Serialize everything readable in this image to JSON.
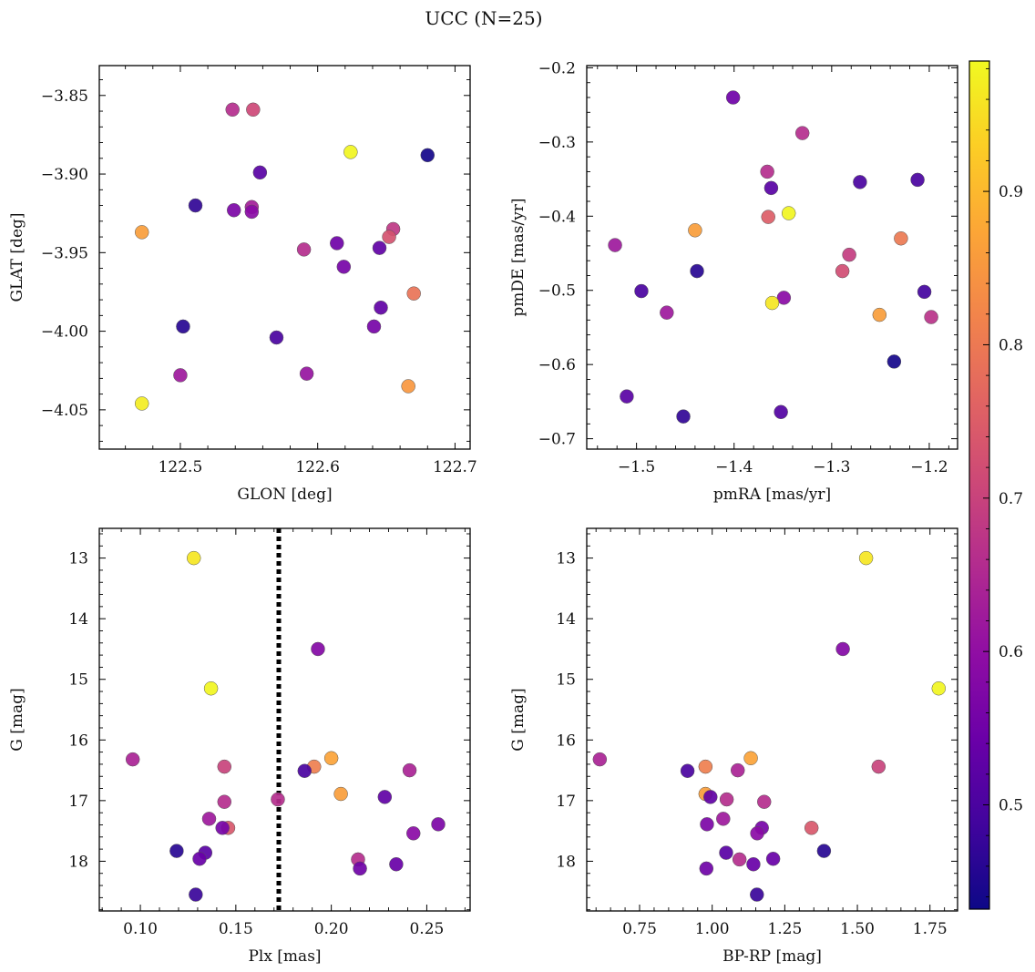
{
  "title": "UCC (N=25)",
  "colorbar": {
    "ticks": [
      0.5,
      0.6,
      0.7,
      0.8,
      0.9
    ],
    "range": [
      0.432,
      0.985
    ],
    "colormap": "plasma"
  },
  "chart_data": [
    {
      "type": "scatter",
      "xlabel": "GLON [deg]",
      "ylabel": "GLAT [deg]",
      "xlim": [
        122.441,
        122.711
      ],
      "ylim": [
        -4.075,
        -3.831
      ],
      "y_inverted": false,
      "xticks": [
        122.5,
        122.6,
        122.7
      ],
      "xtick_labels": [
        "122.5",
        "122.6",
        "122.7"
      ],
      "yticks": [
        -3.85,
        -3.9,
        -3.95,
        -4.0,
        -4.05
      ],
      "ytick_labels": [
        "−3.85",
        "−3.90",
        "−3.95",
        "−4.00",
        "−4.05"
      ],
      "points": [
        {
          "x": 122.538,
          "y": -3.859,
          "c": 0.66
        },
        {
          "x": 122.553,
          "y": -3.859,
          "c": 0.71
        },
        {
          "x": 122.624,
          "y": -3.886,
          "c": 0.98
        },
        {
          "x": 122.68,
          "y": -3.888,
          "c": 0.44
        },
        {
          "x": 122.558,
          "y": -3.899,
          "c": 0.52
        },
        {
          "x": 122.511,
          "y": -3.92,
          "c": 0.47
        },
        {
          "x": 122.539,
          "y": -3.923,
          "c": 0.57
        },
        {
          "x": 122.552,
          "y": -3.921,
          "c": 0.63
        },
        {
          "x": 122.552,
          "y": -3.924,
          "c": 0.59
        },
        {
          "x": 122.472,
          "y": -3.937,
          "c": 0.86
        },
        {
          "x": 122.655,
          "y": -3.935,
          "c": 0.68
        },
        {
          "x": 122.652,
          "y": -3.94,
          "c": 0.73
        },
        {
          "x": 122.614,
          "y": -3.944,
          "c": 0.55
        },
        {
          "x": 122.59,
          "y": -3.948,
          "c": 0.66
        },
        {
          "x": 122.645,
          "y": -3.947,
          "c": 0.53
        },
        {
          "x": 122.619,
          "y": -3.959,
          "c": 0.56
        },
        {
          "x": 122.67,
          "y": -3.976,
          "c": 0.79
        },
        {
          "x": 122.502,
          "y": -3.997,
          "c": 0.46
        },
        {
          "x": 122.646,
          "y": -3.985,
          "c": 0.53
        },
        {
          "x": 122.641,
          "y": -3.997,
          "c": 0.56
        },
        {
          "x": 122.57,
          "y": -4.004,
          "c": 0.5
        },
        {
          "x": 122.5,
          "y": -4.028,
          "c": 0.62
        },
        {
          "x": 122.592,
          "y": -4.027,
          "c": 0.61
        },
        {
          "x": 122.666,
          "y": -4.035,
          "c": 0.85
        },
        {
          "x": 122.472,
          "y": -4.046,
          "c": 0.97
        }
      ]
    },
    {
      "type": "scatter",
      "xlabel": "pmRA [mas/yr]",
      "ylabel": "pmDE [mas/yr]",
      "xlim": [
        -1.551,
        -1.171
      ],
      "ylim": [
        -0.714,
        -0.197
      ],
      "y_inverted": false,
      "xticks": [
        -1.5,
        -1.4,
        -1.3,
        -1.2
      ],
      "xtick_labels": [
        "−1.5",
        "−1.4",
        "−1.3",
        "−1.2"
      ],
      "yticks": [
        -0.2,
        -0.3,
        -0.4,
        -0.5,
        -0.6,
        -0.7
      ],
      "ytick_labels": [
        "−0.2",
        "−0.3",
        "−0.4",
        "−0.5",
        "−0.6",
        "−0.7"
      ],
      "points": [
        {
          "x": -1.401,
          "y": -0.24,
          "c": 0.55
        },
        {
          "x": -1.33,
          "y": -0.288,
          "c": 0.66
        },
        {
          "x": -1.366,
          "y": -0.34,
          "c": 0.66
        },
        {
          "x": -1.362,
          "y": -0.362,
          "c": 0.52
        },
        {
          "x": -1.271,
          "y": -0.354,
          "c": 0.5
        },
        {
          "x": -1.212,
          "y": -0.351,
          "c": 0.5
        },
        {
          "x": -1.344,
          "y": -0.396,
          "c": 0.98
        },
        {
          "x": -1.365,
          "y": -0.401,
          "c": 0.75
        },
        {
          "x": -1.44,
          "y": -0.419,
          "c": 0.86
        },
        {
          "x": -1.522,
          "y": -0.439,
          "c": 0.62
        },
        {
          "x": -1.229,
          "y": -0.43,
          "c": 0.8
        },
        {
          "x": -1.282,
          "y": -0.452,
          "c": 0.69
        },
        {
          "x": -1.438,
          "y": -0.474,
          "c": 0.46
        },
        {
          "x": -1.289,
          "y": -0.474,
          "c": 0.72
        },
        {
          "x": -1.495,
          "y": -0.501,
          "c": 0.5
        },
        {
          "x": -1.205,
          "y": -0.502,
          "c": 0.49
        },
        {
          "x": -1.349,
          "y": -0.51,
          "c": 0.59
        },
        {
          "x": -1.361,
          "y": -0.517,
          "c": 0.96
        },
        {
          "x": -1.469,
          "y": -0.53,
          "c": 0.62
        },
        {
          "x": -1.251,
          "y": -0.533,
          "c": 0.86
        },
        {
          "x": -1.198,
          "y": -0.536,
          "c": 0.67
        },
        {
          "x": -1.236,
          "y": -0.596,
          "c": 0.44
        },
        {
          "x": -1.51,
          "y": -0.643,
          "c": 0.52
        },
        {
          "x": -1.352,
          "y": -0.664,
          "c": 0.51
        },
        {
          "x": -1.452,
          "y": -0.67,
          "c": 0.47
        }
      ]
    },
    {
      "type": "scatter",
      "xlabel": "Plx [mas]",
      "ylabel": "G [mag]",
      "xlim": [
        0.0785,
        0.2727
      ],
      "ylim": [
        18.82,
        12.51
      ],
      "y_inverted": true,
      "xticks": [
        0.1,
        0.15,
        0.2,
        0.25
      ],
      "xtick_labels": [
        "0.10",
        "0.15",
        "0.20",
        "0.25"
      ],
      "yticks": [
        13,
        14,
        15,
        16,
        17,
        18
      ],
      "ytick_labels": [
        "13",
        "14",
        "15",
        "16",
        "17",
        "18"
      ],
      "vline": {
        "x": 0.1725,
        "style": "dotted",
        "color": "#000000"
      },
      "points": [
        {
          "x": 0.128,
          "y": 13.0,
          "c": 0.96
        },
        {
          "x": 0.193,
          "y": 14.5,
          "c": 0.58
        },
        {
          "x": 0.137,
          "y": 15.15,
          "c": 0.98
        },
        {
          "x": 0.096,
          "y": 16.32,
          "c": 0.64
        },
        {
          "x": 0.2,
          "y": 16.3,
          "c": 0.87
        },
        {
          "x": 0.191,
          "y": 16.44,
          "c": 0.81
        },
        {
          "x": 0.144,
          "y": 16.44,
          "c": 0.7
        },
        {
          "x": 0.186,
          "y": 16.51,
          "c": 0.5
        },
        {
          "x": 0.241,
          "y": 16.5,
          "c": 0.64
        },
        {
          "x": 0.205,
          "y": 16.89,
          "c": 0.86
        },
        {
          "x": 0.228,
          "y": 16.94,
          "c": 0.53
        },
        {
          "x": 0.172,
          "y": 16.98,
          "c": 0.66
        },
        {
          "x": 0.144,
          "y": 17.02,
          "c": 0.66
        },
        {
          "x": 0.136,
          "y": 17.3,
          "c": 0.62
        },
        {
          "x": 0.256,
          "y": 17.39,
          "c": 0.57
        },
        {
          "x": 0.146,
          "y": 17.45,
          "c": 0.74
        },
        {
          "x": 0.143,
          "y": 17.45,
          "c": 0.56
        },
        {
          "x": 0.243,
          "y": 17.54,
          "c": 0.59
        },
        {
          "x": 0.119,
          "y": 17.83,
          "c": 0.46
        },
        {
          "x": 0.134,
          "y": 17.86,
          "c": 0.52
        },
        {
          "x": 0.131,
          "y": 17.96,
          "c": 0.54
        },
        {
          "x": 0.214,
          "y": 17.97,
          "c": 0.66
        },
        {
          "x": 0.234,
          "y": 18.05,
          "c": 0.54
        },
        {
          "x": 0.215,
          "y": 18.12,
          "c": 0.55
        },
        {
          "x": 0.129,
          "y": 18.55,
          "c": 0.48
        }
      ]
    },
    {
      "type": "scatter",
      "xlabel": "BP-RP [mag]",
      "ylabel": "G [mag]",
      "xlim": [
        0.568,
        1.845
      ],
      "ylim": [
        18.82,
        12.51
      ],
      "y_inverted": true,
      "xticks": [
        0.75,
        1.0,
        1.25,
        1.5,
        1.75
      ],
      "xtick_labels": [
        "0.75",
        "1.00",
        "1.25",
        "1.50",
        "1.75"
      ],
      "yticks": [
        13,
        14,
        15,
        16,
        17,
        18
      ],
      "ytick_labels": [
        "13",
        "14",
        "15",
        "16",
        "17",
        "18"
      ],
      "points": [
        {
          "x": 1.53,
          "y": 13.0,
          "c": 0.96
        },
        {
          "x": 1.45,
          "y": 14.5,
          "c": 0.58
        },
        {
          "x": 1.78,
          "y": 15.15,
          "c": 0.98
        },
        {
          "x": 0.613,
          "y": 16.32,
          "c": 0.64
        },
        {
          "x": 1.133,
          "y": 16.3,
          "c": 0.87
        },
        {
          "x": 0.977,
          "y": 16.44,
          "c": 0.81
        },
        {
          "x": 1.573,
          "y": 16.44,
          "c": 0.7
        },
        {
          "x": 0.915,
          "y": 16.51,
          "c": 0.5
        },
        {
          "x": 1.088,
          "y": 16.5,
          "c": 0.64
        },
        {
          "x": 0.977,
          "y": 16.89,
          "c": 0.86
        },
        {
          "x": 0.994,
          "y": 16.94,
          "c": 0.53
        },
        {
          "x": 1.05,
          "y": 16.98,
          "c": 0.66
        },
        {
          "x": 1.179,
          "y": 17.02,
          "c": 0.66
        },
        {
          "x": 1.038,
          "y": 17.3,
          "c": 0.62
        },
        {
          "x": 0.982,
          "y": 17.39,
          "c": 0.57
        },
        {
          "x": 1.342,
          "y": 17.45,
          "c": 0.74
        },
        {
          "x": 1.171,
          "y": 17.45,
          "c": 0.56
        },
        {
          "x": 1.155,
          "y": 17.54,
          "c": 0.59
        },
        {
          "x": 1.385,
          "y": 17.83,
          "c": 0.46
        },
        {
          "x": 1.048,
          "y": 17.86,
          "c": 0.52
        },
        {
          "x": 1.21,
          "y": 17.96,
          "c": 0.54
        },
        {
          "x": 1.094,
          "y": 17.97,
          "c": 0.66
        },
        {
          "x": 1.142,
          "y": 18.05,
          "c": 0.54
        },
        {
          "x": 0.98,
          "y": 18.12,
          "c": 0.55
        },
        {
          "x": 1.154,
          "y": 18.55,
          "c": 0.48
        }
      ]
    }
  ]
}
